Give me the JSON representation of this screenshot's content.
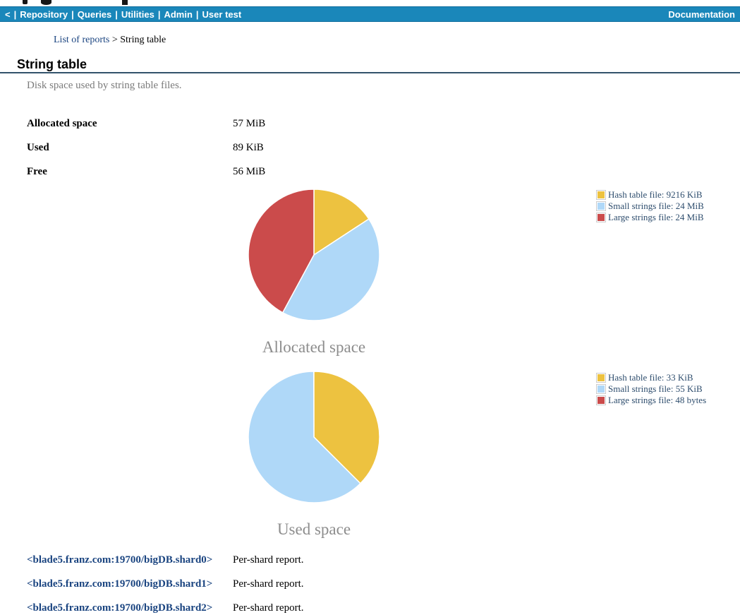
{
  "nav": {
    "back": "<",
    "separator": "|",
    "left_items": [
      "Repository",
      "Queries",
      "Utilities",
      "Admin",
      "User test"
    ],
    "right_item": "Documentation"
  },
  "breadcrumb": {
    "link": "List of reports",
    "separator": " > ",
    "current": "String table"
  },
  "header": {
    "title": "String table",
    "subtitle": "Disk space used by string table files."
  },
  "stats": [
    {
      "label": "Allocated space",
      "value": "57 MiB"
    },
    {
      "label": "Used",
      "value": "89 KiB"
    },
    {
      "label": "Free",
      "value": "56 MiB"
    }
  ],
  "colors": {
    "navbar": "#1a87ba",
    "pie_yellow": "#edc240",
    "pie_blue": "#afd8f8",
    "pie_red": "#cb4b4b",
    "legend_text": "#2f4e6e",
    "link": "#1a4480",
    "title_rule": "#33536b",
    "caption_gray": "#8d8d8d"
  },
  "chart_data": [
    {
      "type": "pie",
      "title": "Allocated space",
      "legend_position": "right",
      "start_angle_deg": 0,
      "series": [
        {
          "name": "Hash table file",
          "value_kib": 9216,
          "display": "9216 KiB",
          "legend_label": "Hash table file: 9216 KiB",
          "color": "#edc240"
        },
        {
          "name": "Small strings file",
          "value_kib": 24576,
          "display": "24 MiB",
          "legend_label": "Small strings file: 24 MiB",
          "color": "#afd8f8"
        },
        {
          "name": "Large strings file",
          "value_kib": 24576,
          "display": "24 MiB",
          "legend_label": "Large strings file: 24 MiB",
          "color": "#cb4b4b"
        }
      ]
    },
    {
      "type": "pie",
      "title": "Used space",
      "legend_position": "right",
      "start_angle_deg": 0,
      "series": [
        {
          "name": "Hash table file",
          "value_kib": 33,
          "display": "33 KiB",
          "legend_label": "Hash table file: 33 KiB",
          "color": "#edc240"
        },
        {
          "name": "Small strings file",
          "value_kib": 55,
          "display": "55 KiB",
          "legend_label": "Small strings file: 55 KiB",
          "color": "#afd8f8"
        },
        {
          "name": "Large strings file",
          "value_kib": 0.046875,
          "display": "48 bytes",
          "legend_label": "Large strings file: 48 bytes",
          "color": "#cb4b4b"
        }
      ]
    }
  ],
  "shard_links": [
    {
      "link": "<blade5.franz.com:19700/bigDB.shard0>",
      "text": "Per-shard report."
    },
    {
      "link": "<blade5.franz.com:19700/bigDB.shard1>",
      "text": "Per-shard report."
    },
    {
      "link": "<blade5.franz.com:19700/bigDB.shard2>",
      "text": "Per-shard report."
    }
  ]
}
